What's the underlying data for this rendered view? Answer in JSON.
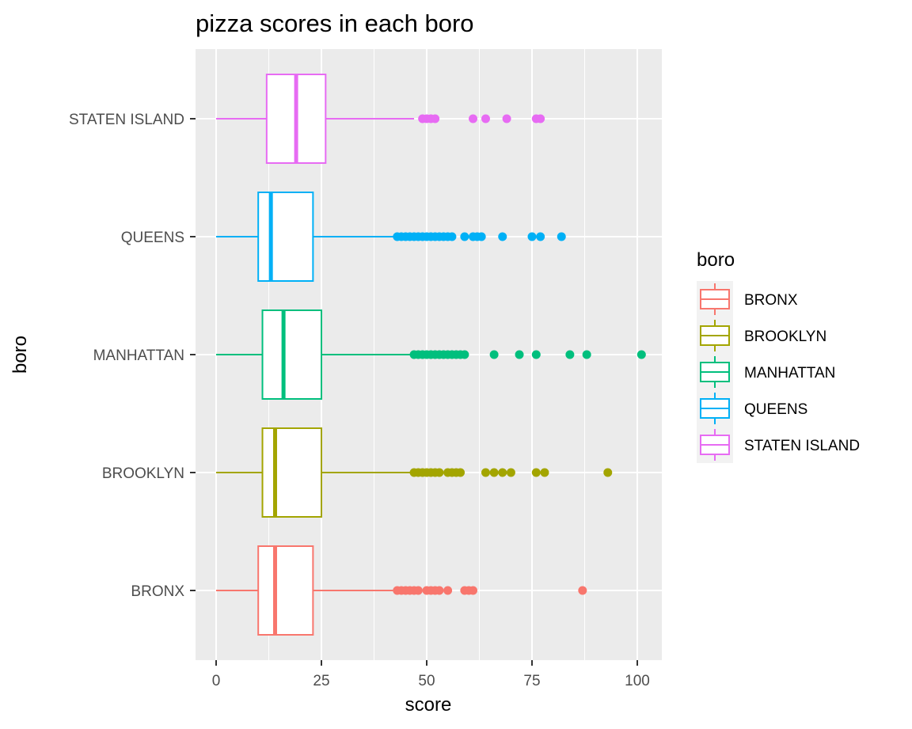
{
  "chart_data": {
    "type": "boxplot",
    "orientation": "horizontal",
    "title": "pizza scores in each boro",
    "xlabel": "score",
    "ylabel": "boro",
    "xlim": [
      -5,
      105
    ],
    "xticks": [
      0,
      25,
      50,
      75,
      100
    ],
    "grid": true,
    "legend": {
      "title": "boro",
      "position": "right"
    },
    "categories": [
      "BRONX",
      "BROOKLYN",
      "MANHATTAN",
      "QUEENS",
      "STATEN ISLAND"
    ],
    "series": [
      {
        "name": "BRONX",
        "color": "#F8766D",
        "whisker_low": 0,
        "q1": 10,
        "median": 14,
        "q3": 23,
        "whisker_high": 42,
        "outliers": [
          43,
          44,
          45,
          46,
          47,
          48,
          50,
          51,
          52,
          53,
          55,
          59,
          60,
          61,
          87
        ]
      },
      {
        "name": "BROOKLYN",
        "color": "#A3A500",
        "whisker_low": 0,
        "q1": 11,
        "median": 14,
        "q3": 25,
        "whisker_high": 47,
        "outliers": [
          47,
          48,
          49,
          50,
          51,
          52,
          53,
          55,
          56,
          57,
          58,
          64,
          66,
          68,
          70,
          76,
          78,
          93
        ]
      },
      {
        "name": "MANHATTAN",
        "color": "#00BF7D",
        "whisker_low": 0,
        "q1": 11,
        "median": 16,
        "q3": 25,
        "whisker_high": 47,
        "outliers": [
          47,
          48,
          49,
          50,
          51,
          52,
          53,
          54,
          55,
          56,
          57,
          58,
          59,
          66,
          72,
          76,
          84,
          88,
          101
        ]
      },
      {
        "name": "QUEENS",
        "color": "#00B0F6",
        "whisker_low": 0,
        "q1": 10,
        "median": 13,
        "q3": 23,
        "whisker_high": 43,
        "outliers": [
          43,
          44,
          45,
          46,
          47,
          48,
          49,
          50,
          51,
          52,
          53,
          54,
          55,
          56,
          59,
          61,
          62,
          63,
          68,
          75,
          77,
          82
        ]
      },
      {
        "name": "STATEN ISLAND",
        "color": "#E76BF3",
        "whisker_low": 0,
        "q1": 12,
        "median": 19,
        "q3": 26,
        "whisker_high": 47,
        "outliers": [
          49,
          50,
          51,
          52,
          61,
          64,
          69,
          76,
          77
        ]
      }
    ]
  }
}
